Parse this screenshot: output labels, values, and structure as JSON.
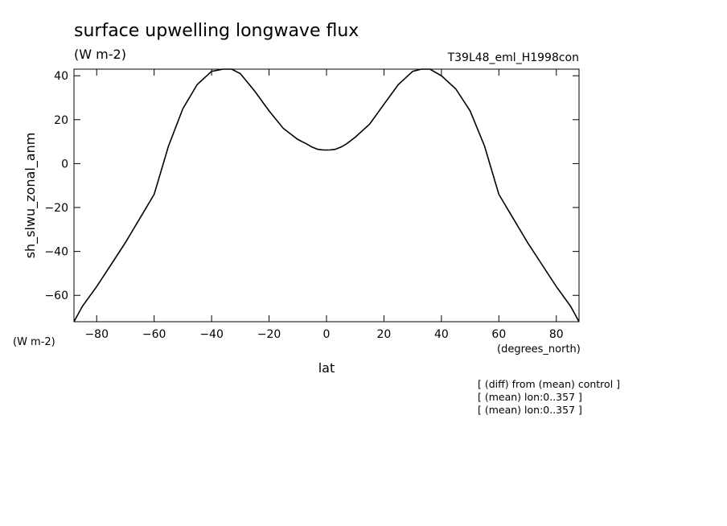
{
  "chart_data": {
    "type": "line",
    "title": "surface upwelling longwave flux",
    "units": "(W m-2)",
    "experiment": "T39L48_eml_H1998con",
    "ylabel": "sh_slwu_zonal_anm",
    "yunits": "(W m-2)",
    "xlabel": "lat",
    "xunits": "(degrees_north)",
    "xlim": [
      -87.9,
      87.9
    ],
    "ylim": [
      -72,
      43
    ],
    "xticks": [
      -80,
      -60,
      -40,
      -20,
      0,
      20,
      40,
      60,
      80
    ],
    "yticks": [
      -60,
      -40,
      -20,
      0,
      20,
      40
    ],
    "grid": false,
    "notes": [
      "[ (diff) from (mean) control ]",
      "[ (mean) lon:0..357 ]",
      "[ (mean) lon:0..357 ]"
    ],
    "series": [
      {
        "x": [
          -87.9,
          -85,
          -80,
          -75,
          -70,
          -65,
          -60,
          -55,
          -50,
          -45,
          -40,
          -36,
          -33,
          -30,
          -25,
          -20,
          -15,
          -10,
          -7,
          -5,
          -3,
          -1,
          0,
          1,
          3,
          5,
          7,
          10,
          15,
          20,
          25,
          30,
          33,
          36,
          40,
          45,
          50,
          55,
          60,
          65,
          70,
          75,
          80,
          85,
          87.9
        ],
        "y": [
          -72,
          -65,
          -56,
          -46,
          -36,
          -25,
          -14,
          8,
          25,
          36,
          42,
          43,
          43,
          41,
          33,
          24,
          16,
          11,
          9,
          7.5,
          6.5,
          6.2,
          6.2,
          6.2,
          6.5,
          7.5,
          9,
          12,
          18,
          27,
          36,
          42,
          43,
          43,
          40,
          34,
          24,
          8,
          -14,
          -25,
          -36,
          -46,
          -56,
          -65,
          -72
        ]
      }
    ]
  }
}
